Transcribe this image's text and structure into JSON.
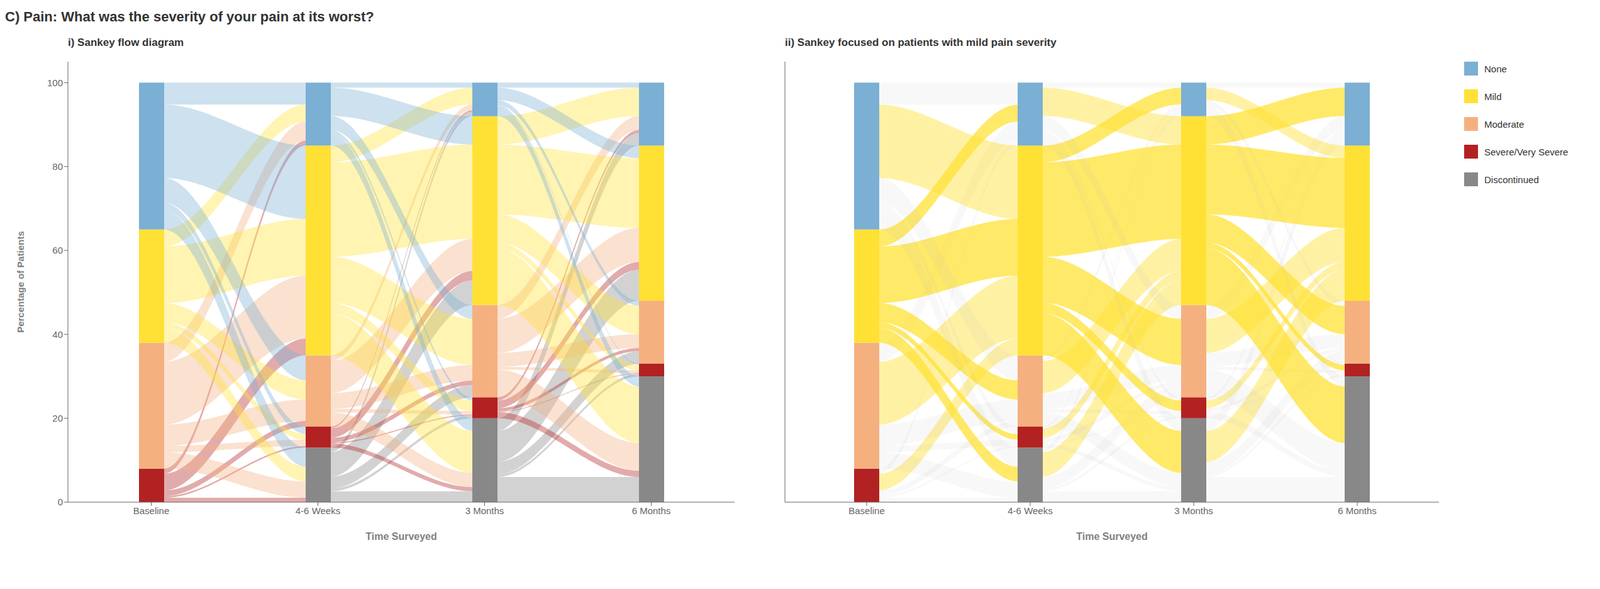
{
  "title": "C) Pain: What was the severity of your pain at its worst?",
  "chart_data": [
    {
      "type": "sankey",
      "stacked": true,
      "grid": false,
      "subtitle": "i) Sankey flow diagram",
      "x_label": "Time Surveyed",
      "y_label": "Percentage of Patients",
      "categories": [
        "Baseline",
        "4-6 Weeks",
        "3 Months",
        "6 Months"
      ],
      "series": [
        {
          "name": "Discontinued",
          "color": "#888888",
          "values": [
            0,
            13,
            20,
            30
          ]
        },
        {
          "name": "Severe/Very Severe",
          "color": "#B22222",
          "values": [
            8,
            5,
            5,
            3
          ]
        },
        {
          "name": "Moderate",
          "color": "#F5B080",
          "values": [
            30,
            17,
            22,
            15
          ]
        },
        {
          "name": "Mild",
          "color": "#FFE135",
          "values": [
            27,
            50,
            45,
            37
          ]
        },
        {
          "name": "None",
          "color": "#7BAFD4",
          "values": [
            35,
            15,
            8,
            15
          ]
        }
      ],
      "ylim": [
        0,
        105
      ],
      "yticks": [
        0,
        20,
        40,
        60,
        80,
        100
      ]
    },
    {
      "type": "sankey",
      "stacked": true,
      "grid": false,
      "legend": "right",
      "tick_labels": "x",
      "subtitle": "ii) Sankey focused on patients with mild pain severity",
      "x_label": "Time Surveyed",
      "categories": [
        "Baseline",
        "4-6 Weeks",
        "3 Months",
        "6 Months"
      ],
      "series": [
        {
          "name": "Discontinued",
          "color": "#888888",
          "values": [
            0,
            13,
            20,
            30
          ]
        },
        {
          "name": "Severe/Very Severe",
          "color": "#B22222",
          "values": [
            8,
            5,
            5,
            3
          ]
        },
        {
          "name": "Moderate",
          "color": "#F5B080",
          "values": [
            30,
            17,
            22,
            15
          ]
        },
        {
          "name": "Mild",
          "color": "#FFE135",
          "values": [
            27,
            50,
            45,
            37
          ]
        },
        {
          "name": "None",
          "color": "#7BAFD4",
          "values": [
            35,
            15,
            8,
            15
          ]
        }
      ],
      "ylim": [
        0,
        105
      ],
      "yticks": [
        0,
        20,
        40,
        60,
        80,
        100
      ]
    }
  ]
}
